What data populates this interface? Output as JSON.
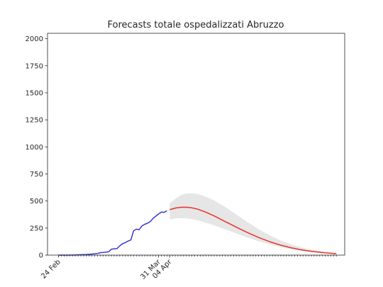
{
  "chart_data": {
    "type": "line",
    "title": "Forecasts totale ospedalizzati Abruzzo",
    "xlabel": "",
    "ylabel": "",
    "x_domain": [
      "2020-02-20",
      "2020-06-06"
    ],
    "ylim": [
      0,
      2050
    ],
    "grid": false,
    "y_ticks": [
      0,
      250,
      500,
      750,
      1000,
      1250,
      1500,
      1750,
      2000
    ],
    "x_tick_labels": [
      {
        "date": "2020-02-24",
        "label": "24 Feb"
      },
      {
        "date": "2020-03-31",
        "label": "31 Mar"
      },
      {
        "date": "2020-04-04",
        "label": "04 Apr"
      }
    ],
    "minor_tick_start": "2020-02-24",
    "minor_tick_end": "2020-06-03",
    "series": [
      {
        "kind": "observed",
        "color": "#3a3ad6",
        "points": [
          [
            "2020-02-24",
            0
          ],
          [
            "2020-02-27",
            0
          ],
          [
            "2020-03-01",
            2
          ],
          [
            "2020-03-03",
            4
          ],
          [
            "2020-03-05",
            6
          ],
          [
            "2020-03-07",
            10
          ],
          [
            "2020-03-09",
            15
          ],
          [
            "2020-03-10",
            22
          ],
          [
            "2020-03-11",
            25
          ],
          [
            "2020-03-12",
            28
          ],
          [
            "2020-03-13",
            30
          ],
          [
            "2020-03-14",
            55
          ],
          [
            "2020-03-15",
            58
          ],
          [
            "2020-03-16",
            60
          ],
          [
            "2020-03-17",
            85
          ],
          [
            "2020-03-18",
            105
          ],
          [
            "2020-03-19",
            115
          ],
          [
            "2020-03-20",
            130
          ],
          [
            "2020-03-21",
            140
          ],
          [
            "2020-03-22",
            225
          ],
          [
            "2020-03-23",
            240
          ],
          [
            "2020-03-24",
            235
          ],
          [
            "2020-03-25",
            270
          ],
          [
            "2020-03-26",
            285
          ],
          [
            "2020-03-27",
            295
          ],
          [
            "2020-03-28",
            310
          ],
          [
            "2020-03-29",
            340
          ],
          [
            "2020-03-30",
            360
          ],
          [
            "2020-03-31",
            380
          ],
          [
            "2020-04-01",
            398
          ],
          [
            "2020-04-02",
            395
          ],
          [
            "2020-04-03",
            410
          ]
        ]
      },
      {
        "kind": "forecast",
        "color": "#e8332a",
        "points": [
          [
            "2020-04-04",
            420
          ],
          [
            "2020-04-06",
            435
          ],
          [
            "2020-04-08",
            442
          ],
          [
            "2020-04-10",
            443
          ],
          [
            "2020-04-12",
            437
          ],
          [
            "2020-04-14",
            425
          ],
          [
            "2020-04-17",
            397
          ],
          [
            "2020-04-20",
            362
          ],
          [
            "2020-04-24",
            310
          ],
          [
            "2020-04-28",
            258
          ],
          [
            "2020-05-02",
            208
          ],
          [
            "2020-05-06",
            163
          ],
          [
            "2020-05-10",
            124
          ],
          [
            "2020-05-14",
            92
          ],
          [
            "2020-05-18",
            66
          ],
          [
            "2020-05-22",
            46
          ],
          [
            "2020-05-26",
            32
          ],
          [
            "2020-05-30",
            21
          ],
          [
            "2020-06-03",
            13
          ]
        ]
      }
    ],
    "band": {
      "color": "#e6e6e6",
      "points": [
        [
          "2020-04-04",
          330,
          480
        ],
        [
          "2020-04-06",
          340,
          520
        ],
        [
          "2020-04-08",
          342,
          555
        ],
        [
          "2020-04-10",
          340,
          570
        ],
        [
          "2020-04-12",
          333,
          572
        ],
        [
          "2020-04-14",
          322,
          565
        ],
        [
          "2020-04-17",
          300,
          540
        ],
        [
          "2020-04-20",
          275,
          505
        ],
        [
          "2020-04-24",
          238,
          445
        ],
        [
          "2020-04-28",
          200,
          375
        ],
        [
          "2020-05-02",
          163,
          305
        ],
        [
          "2020-05-06",
          128,
          240
        ],
        [
          "2020-05-10",
          98,
          182
        ],
        [
          "2020-05-14",
          72,
          134
        ],
        [
          "2020-05-18",
          52,
          96
        ],
        [
          "2020-05-22",
          36,
          67
        ],
        [
          "2020-05-26",
          24,
          45
        ],
        [
          "2020-05-30",
          15,
          29
        ],
        [
          "2020-06-03",
          9,
          18
        ]
      ]
    }
  }
}
